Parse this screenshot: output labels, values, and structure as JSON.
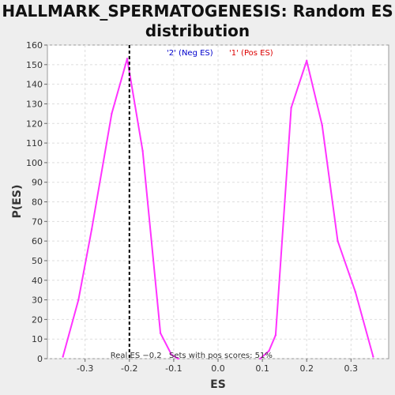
{
  "chart_data": {
    "type": "line",
    "title": "HALLMARK_SPERMATOGENESIS: Random ES distribution",
    "xlabel": "ES",
    "ylabel": "P(ES)",
    "xlim": [
      -0.385,
      0.385
    ],
    "ylim": [
      0,
      160
    ],
    "x_ticks": [
      -0.3,
      -0.2,
      -0.1,
      0.0,
      0.1,
      0.2,
      0.3
    ],
    "x_tick_labels": [
      "-0.3",
      "-0.2",
      "-0.1",
      "0.0",
      "0.1",
      "0.2",
      "0.3"
    ],
    "y_ticks": [
      0,
      10,
      20,
      30,
      40,
      50,
      60,
      70,
      80,
      90,
      100,
      110,
      120,
      130,
      140,
      150,
      160
    ],
    "grid": true,
    "legend": [
      {
        "label": "'2' (Neg ES)",
        "color": "#0000cc"
      },
      {
        "label": "'1' (Pos ES)",
        "color": "#dd0000"
      }
    ],
    "series": [
      {
        "color": "#ff33ff",
        "x": [
          -0.35,
          -0.315,
          -0.285,
          -0.24,
          -0.205,
          -0.17,
          -0.13,
          -0.105,
          -0.09
        ],
        "y": [
          1,
          30,
          66,
          125,
          153,
          106,
          13,
          2,
          0
        ]
      },
      {
        "color": "#ff33ff",
        "x": [
          0.095,
          0.115,
          0.13,
          0.165,
          0.2,
          0.235,
          0.27,
          0.31,
          0.35
        ],
        "y": [
          0,
          4,
          12,
          128,
          152,
          119,
          60,
          34,
          1
        ]
      }
    ],
    "real_es": {
      "x": -0.2,
      "label": "Real ES −0.2",
      "color": "#000000"
    },
    "annotation": "Sets with pos scores: 51%"
  }
}
